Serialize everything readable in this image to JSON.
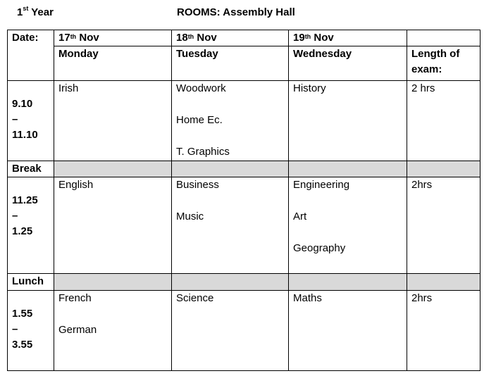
{
  "header": {
    "year_num": "1",
    "year_sup": "st",
    "year_text": " Year",
    "rooms": "ROOMS: Assembly Hall"
  },
  "table": {
    "date_label": "Date:",
    "days": [
      {
        "num": "17",
        "sup": "th",
        "month": " Nov",
        "day": "Monday"
      },
      {
        "num": "18",
        "sup": "th",
        "month": " Nov",
        "day": "Tuesday"
      },
      {
        "num": "19",
        "sup": "th",
        "month": " Nov",
        "day": "Wednesday"
      }
    ],
    "length_label_1": "Length of",
    "length_label_2": "exam:",
    "sessions": [
      {
        "start": "9.10",
        "dash": "–",
        "end": "11.10",
        "mon": [
          "Irish"
        ],
        "tue": [
          "Woodwork",
          "Home Ec.",
          "T. Graphics"
        ],
        "wed": [
          "History"
        ],
        "length": "2 hrs"
      },
      {
        "start": "11.25",
        "dash": "–",
        "end": "1.25",
        "mon": [
          "English"
        ],
        "tue": [
          "Business",
          "Music"
        ],
        "wed": [
          "Engineering",
          "Art",
          "Geography"
        ],
        "length": "2hrs"
      },
      {
        "start": "1.55",
        "dash": "–",
        "end": "3.55",
        "mon": [
          "French",
          "German"
        ],
        "tue": [
          "Science"
        ],
        "wed": [
          "Maths"
        ],
        "length": "2hrs"
      }
    ],
    "break_label": "Break",
    "lunch_label": "Lunch"
  }
}
